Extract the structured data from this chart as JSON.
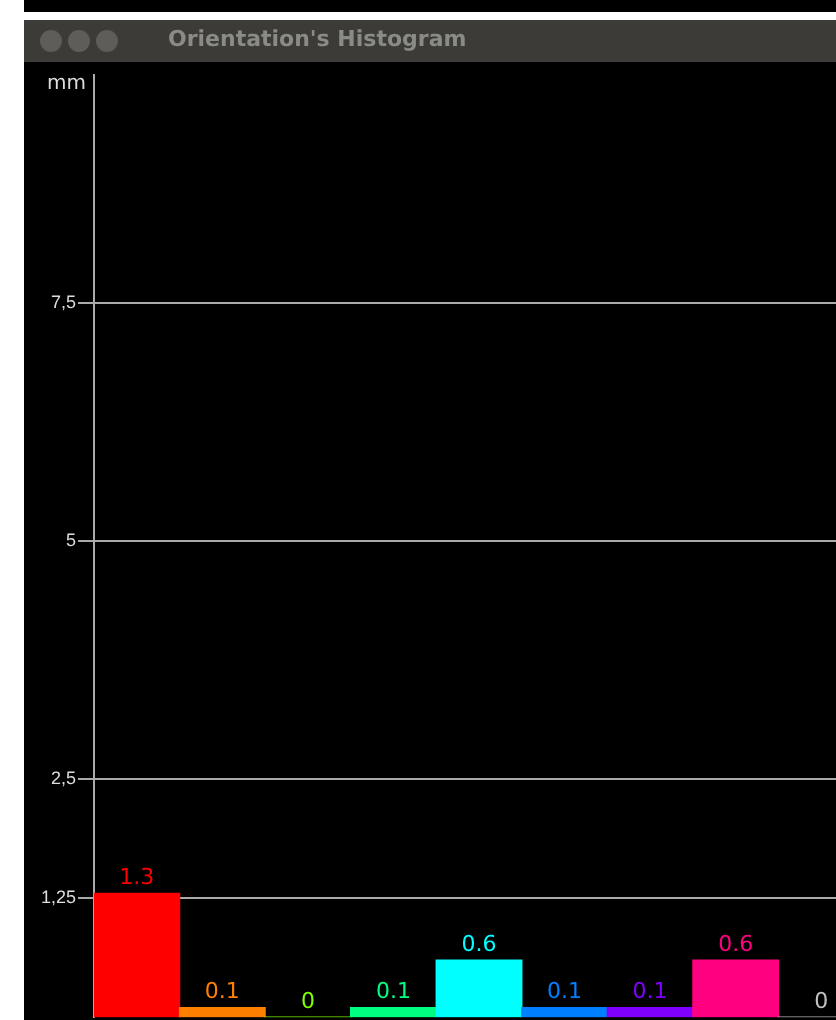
{
  "chart_data": {
    "type": "bar",
    "title": "Orientation's Histogram",
    "ylabel": "mm",
    "categories": [
      null,
      null,
      null,
      null,
      null,
      null,
      null,
      null,
      null
    ],
    "values": [
      1.3,
      0.1,
      0,
      0.1,
      0.6,
      0.1,
      0.1,
      0.6,
      0
    ],
    "colors": [
      "#ff0000",
      "#ff8000",
      "#80ff00",
      "#00ff80",
      "#00ffff",
      "#0080ff",
      "#8000ff",
      "#ff0080",
      "#c0c0c0"
    ],
    "ylim": [
      0,
      9.9
    ],
    "yticks": [
      {
        "value": 1.25,
        "label": "1,25"
      },
      {
        "value": 2.5,
        "label": "2,5"
      },
      {
        "value": 5,
        "label": "5"
      },
      {
        "value": 7.5,
        "label": "7,5"
      }
    ],
    "grid": "y",
    "data_labels": true,
    "tick_labels": "y"
  }
}
